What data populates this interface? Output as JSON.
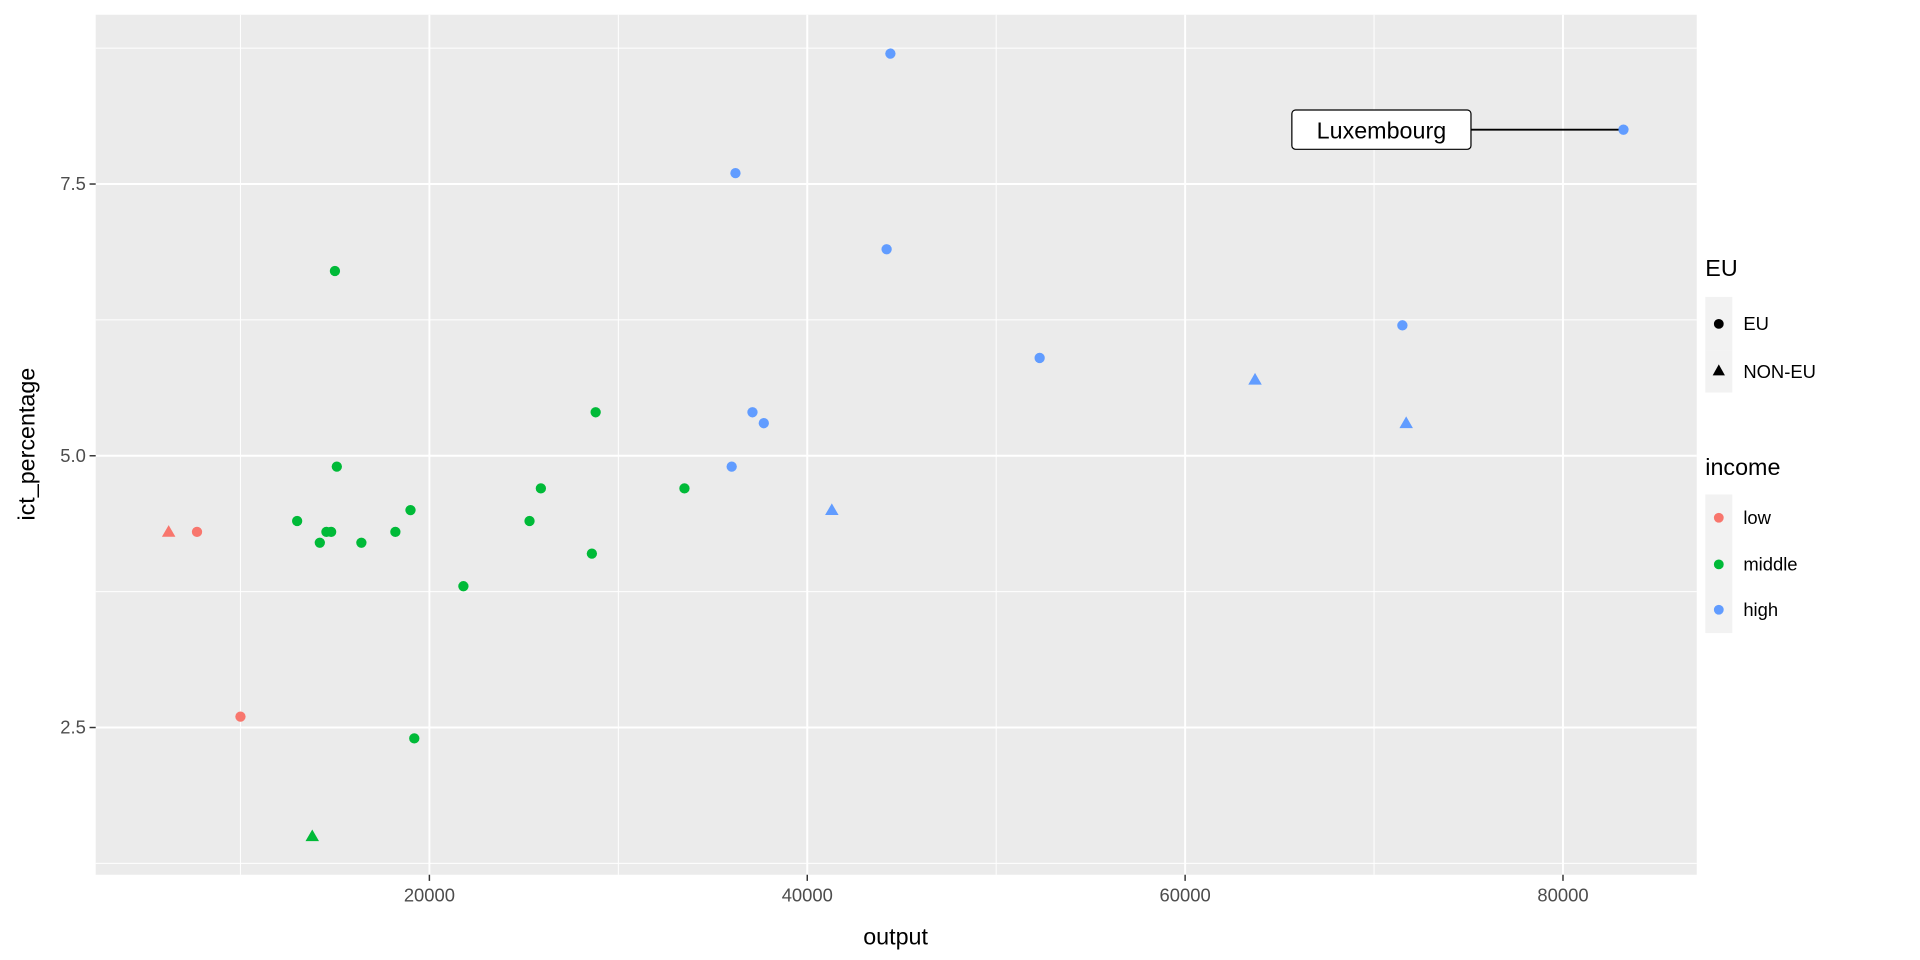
{
  "chart_data": {
    "type": "scatter",
    "title": "",
    "xlabel": "output",
    "ylabel": "ict_percentage",
    "xlim": [
      2300,
      87100
    ],
    "ylim": [
      1.15,
      9.06
    ],
    "x_ticks": [
      20000,
      40000,
      60000,
      80000
    ],
    "x_tick_labels": [
      "20000",
      "40000",
      "60000",
      "80000"
    ],
    "y_ticks": [
      2.5,
      5.0,
      7.5
    ],
    "y_tick_labels": [
      "2.5",
      "5.0",
      "7.5"
    ],
    "grid": true,
    "legend_placement": "right",
    "colors": {
      "low": "#F8766D",
      "middle": "#00BA38",
      "high": "#619CFF",
      "panel": "#EBEBEB"
    },
    "legends": [
      {
        "title": "EU",
        "entries": [
          {
            "label": "EU",
            "shape": "circle"
          },
          {
            "label": "NON-EU",
            "shape": "triangle"
          }
        ]
      },
      {
        "title": "income",
        "entries": [
          {
            "label": "low",
            "color": "#F8766D"
          },
          {
            "label": "middle",
            "color": "#00BA38"
          },
          {
            "label": "high",
            "color": "#619CFF"
          }
        ]
      }
    ],
    "annotations": [
      {
        "text": "Luxembourg",
        "x": 83200,
        "y": 8.0
      }
    ],
    "points": [
      {
        "x": 44400,
        "y": 8.7,
        "eu": "EU",
        "income": "high"
      },
      {
        "x": 83200,
        "y": 8.0,
        "eu": "EU",
        "income": "high"
      },
      {
        "x": 36200,
        "y": 7.6,
        "eu": "EU",
        "income": "high"
      },
      {
        "x": 44200,
        "y": 6.9,
        "eu": "EU",
        "income": "high"
      },
      {
        "x": 15000,
        "y": 6.7,
        "eu": "EU",
        "income": "middle"
      },
      {
        "x": 71500,
        "y": 6.2,
        "eu": "EU",
        "income": "high"
      },
      {
        "x": 52300,
        "y": 5.9,
        "eu": "EU",
        "income": "high"
      },
      {
        "x": 63700,
        "y": 5.7,
        "eu": "NON-EU",
        "income": "high"
      },
      {
        "x": 71700,
        "y": 5.3,
        "eu": "NON-EU",
        "income": "high"
      },
      {
        "x": 28800,
        "y": 5.4,
        "eu": "EU",
        "income": "middle"
      },
      {
        "x": 37100,
        "y": 5.4,
        "eu": "EU",
        "income": "high"
      },
      {
        "x": 37700,
        "y": 5.3,
        "eu": "EU",
        "income": "high"
      },
      {
        "x": 15100,
        "y": 4.9,
        "eu": "EU",
        "income": "middle"
      },
      {
        "x": 36000,
        "y": 4.9,
        "eu": "EU",
        "income": "high"
      },
      {
        "x": 25900,
        "y": 4.7,
        "eu": "EU",
        "income": "middle"
      },
      {
        "x": 33500,
        "y": 4.7,
        "eu": "EU",
        "income": "middle"
      },
      {
        "x": 41300,
        "y": 4.5,
        "eu": "NON-EU",
        "income": "high"
      },
      {
        "x": 19000,
        "y": 4.5,
        "eu": "EU",
        "income": "middle"
      },
      {
        "x": 13000,
        "y": 4.4,
        "eu": "EU",
        "income": "middle"
      },
      {
        "x": 25300,
        "y": 4.4,
        "eu": "EU",
        "income": "middle"
      },
      {
        "x": 14550,
        "y": 4.3,
        "eu": "EU",
        "income": "middle"
      },
      {
        "x": 14800,
        "y": 4.3,
        "eu": "EU",
        "income": "middle"
      },
      {
        "x": 18200,
        "y": 4.3,
        "eu": "EU",
        "income": "middle"
      },
      {
        "x": 7700,
        "y": 4.3,
        "eu": "EU",
        "income": "low"
      },
      {
        "x": 6200,
        "y": 4.3,
        "eu": "NON-EU",
        "income": "low"
      },
      {
        "x": 14200,
        "y": 4.2,
        "eu": "EU",
        "income": "middle"
      },
      {
        "x": 16400,
        "y": 4.2,
        "eu": "EU",
        "income": "middle"
      },
      {
        "x": 28600,
        "y": 4.1,
        "eu": "EU",
        "income": "middle"
      },
      {
        "x": 21800,
        "y": 3.8,
        "eu": "EU",
        "income": "middle"
      },
      {
        "x": 10000,
        "y": 2.6,
        "eu": "EU",
        "income": "low"
      },
      {
        "x": 19200,
        "y": 2.4,
        "eu": "EU",
        "income": "middle"
      },
      {
        "x": 13800,
        "y": 1.5,
        "eu": "NON-EU",
        "income": "middle"
      }
    ]
  }
}
